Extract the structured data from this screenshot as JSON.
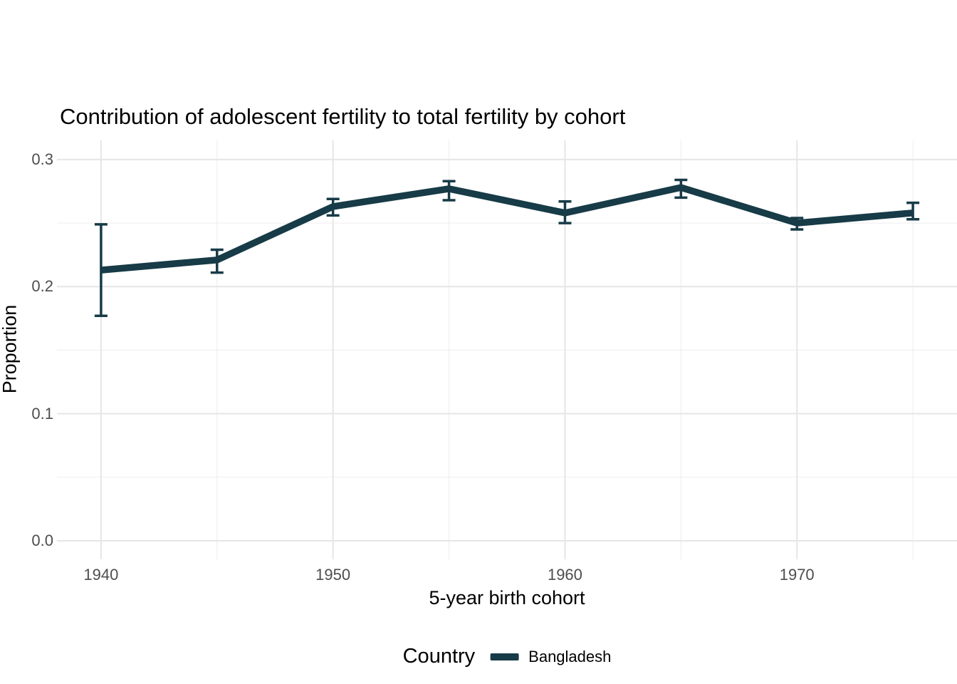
{
  "chart_data": {
    "type": "line",
    "title": "Contribution of adolescent fertility to total fertility by cohort",
    "xlabel": "5-year birth cohort",
    "ylabel": "Proportion",
    "legend": {
      "title": "Country",
      "position": "bottom",
      "entries": [
        {
          "label": "Bangladesh",
          "color": "#173B47"
        }
      ]
    },
    "grid": true,
    "x_range": [
      1938.1,
      1976.9
    ],
    "y_range": [
      -0.0146,
      0.3151
    ],
    "x_ticks": [
      {
        "value": 1940,
        "label": "1940"
      },
      {
        "value": 1950,
        "label": "1950"
      },
      {
        "value": 1960,
        "label": "1960"
      },
      {
        "value": 1970,
        "label": "1970"
      }
    ],
    "x_minor": [
      1945,
      1955,
      1965,
      1975
    ],
    "y_ticks": [
      {
        "value": 0.0,
        "label": "0.0"
      },
      {
        "value": 0.1,
        "label": "0.1"
      },
      {
        "value": 0.2,
        "label": "0.2"
      },
      {
        "value": 0.3,
        "label": "0.3"
      }
    ],
    "y_minor": [
      0.05,
      0.15,
      0.25
    ],
    "series": [
      {
        "name": "Bangladesh",
        "color": "#173B47",
        "points": [
          {
            "x": 1940,
            "y": 0.213,
            "lower": 0.177,
            "upper": 0.249
          },
          {
            "x": 1945,
            "y": 0.221,
            "lower": 0.211,
            "upper": 0.229
          },
          {
            "x": 1950,
            "y": 0.263,
            "lower": 0.256,
            "upper": 0.269
          },
          {
            "x": 1955,
            "y": 0.277,
            "lower": 0.268,
            "upper": 0.283
          },
          {
            "x": 1960,
            "y": 0.258,
            "lower": 0.25,
            "upper": 0.267
          },
          {
            "x": 1965,
            "y": 0.278,
            "lower": 0.27,
            "upper": 0.284
          },
          {
            "x": 1970,
            "y": 0.25,
            "lower": 0.245,
            "upper": 0.254
          },
          {
            "x": 1975,
            "y": 0.258,
            "lower": 0.253,
            "upper": 0.266
          }
        ]
      }
    ]
  },
  "styles": {
    "background": "#FFFFFF",
    "grid_major": "#E6E6E6",
    "grid_minor": "#F0F0F0",
    "tick_text": "#4D4D4D",
    "text": "#000000",
    "line_color": "#173B47"
  }
}
